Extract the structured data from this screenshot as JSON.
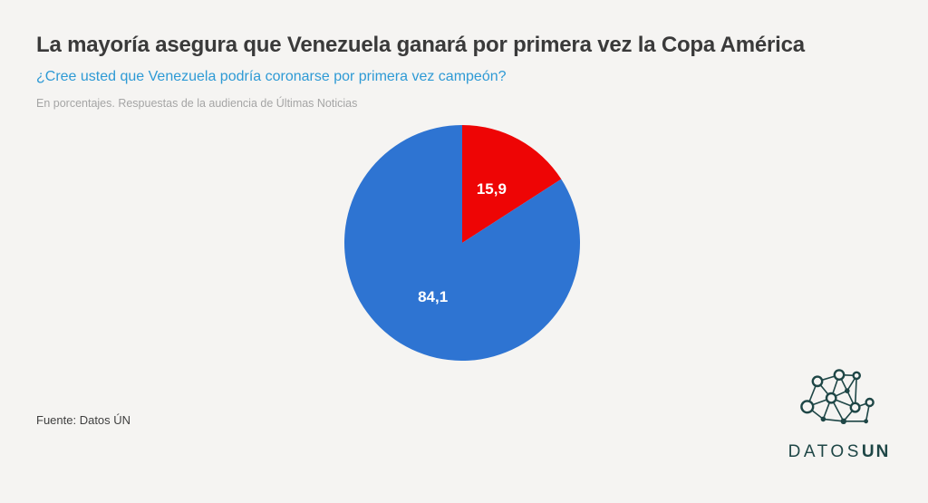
{
  "page": {
    "background": "#f5f4f2"
  },
  "header": {
    "title": "La mayoría asegura que Venezuela ganará por primera vez la Copa América",
    "subtitle": "¿Cree usted que Venezuela podría coronarse por primera vez campeón?",
    "note": "En porcentajes. Respuestas de la audiencia de Últimas Noticias"
  },
  "chart_data": {
    "type": "pie",
    "title": "La mayoría asegura que Venezuela ganará por primera vez la Copa América",
    "subtitle": "¿Cree usted que Venezuela podría coronarse por primera vez campeón?",
    "note": "En porcentajes. Respuestas de la audiencia de Últimas Noticias",
    "unit": "percent",
    "start_angle_deg": 0,
    "direction": "clockwise",
    "legend": "none",
    "label_color": "#ffffff",
    "slices": [
      {
        "label": "15,9",
        "value": 15.9,
        "color": "#ee0505"
      },
      {
        "label": "84,1",
        "value": 84.1,
        "color": "#2e74d2"
      }
    ]
  },
  "footer": {
    "source": "Fuente: Datos ÚN"
  },
  "logo": {
    "text_regular": "DATOS",
    "text_bold": "UN",
    "color": "#1e4646",
    "icon": "network-graph-icon"
  }
}
